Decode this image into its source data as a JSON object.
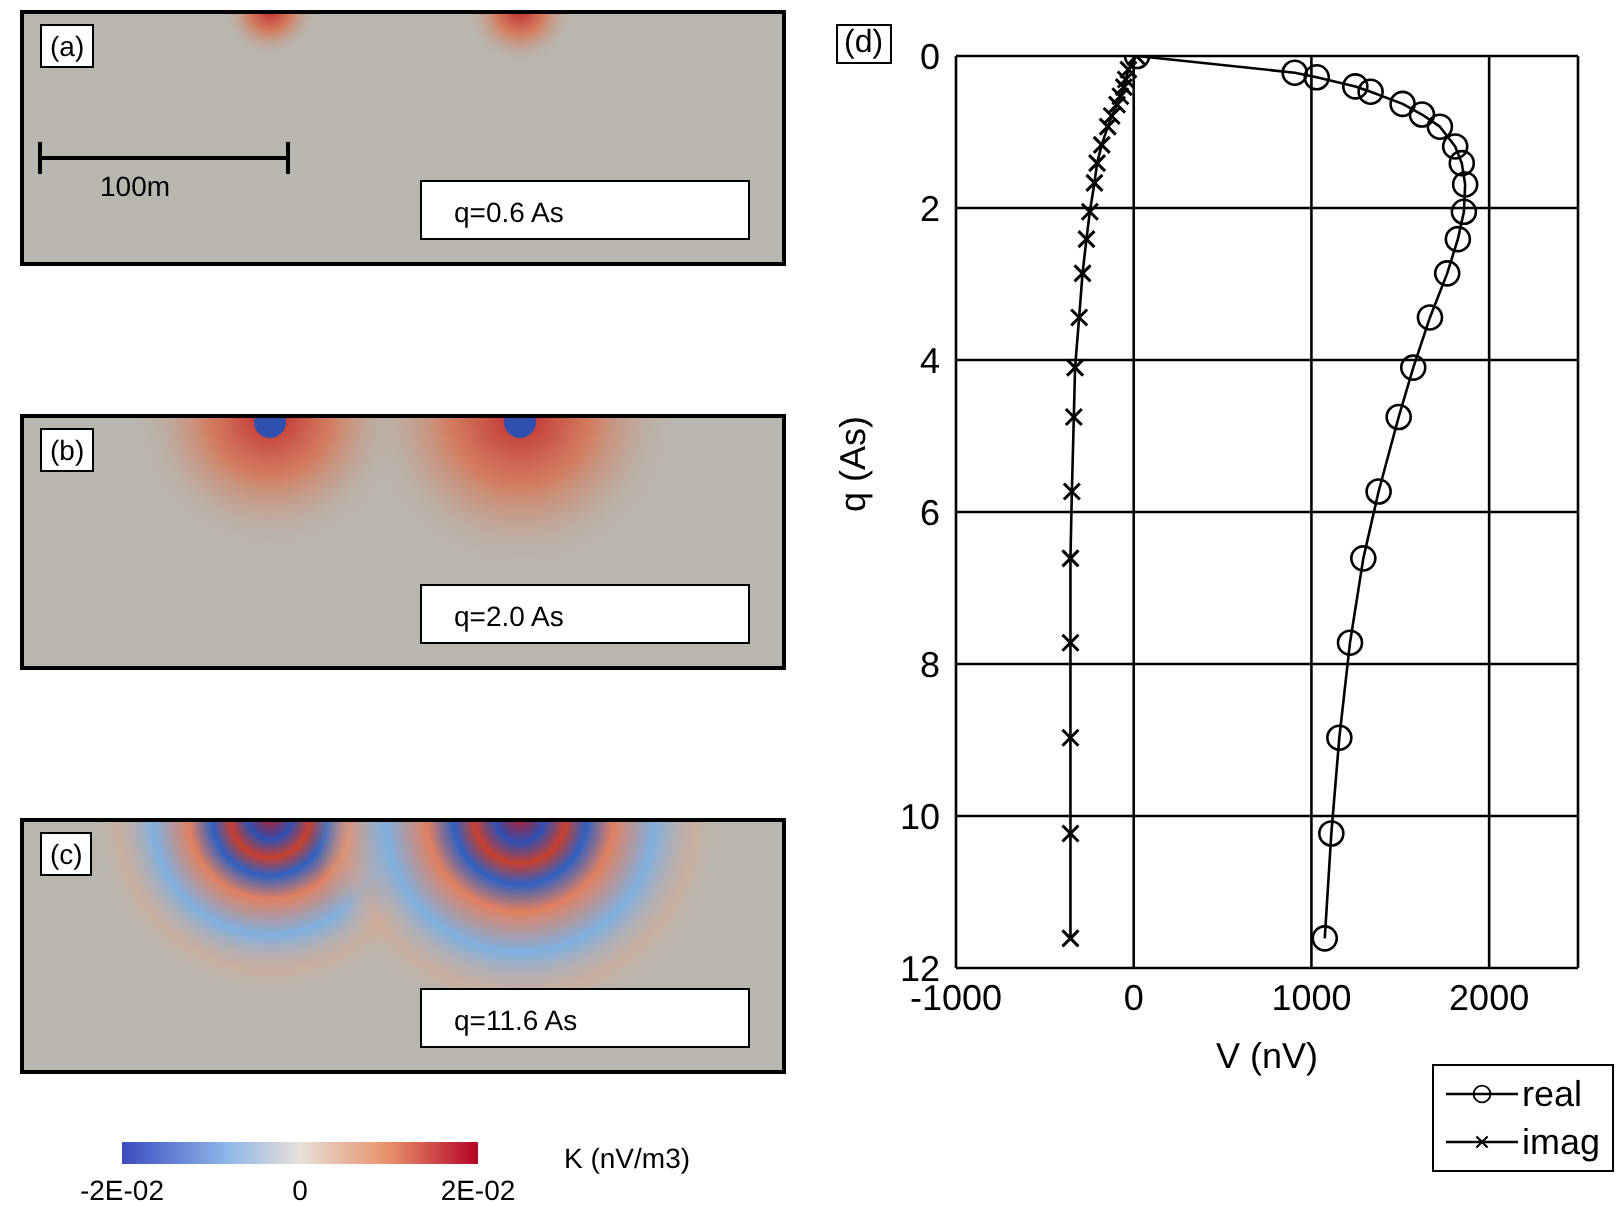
{
  "chart_data": [
    {
      "type": "other",
      "annotations": [
        "(a)",
        "q=0.6 As",
        "100m"
      ]
    },
    {
      "type": "other",
      "annotations": [
        "(b)",
        "q=2.0 As"
      ]
    },
    {
      "type": "other",
      "annotations": [
        "(c)",
        "q=11.6 As",
        "-2E-02",
        "0",
        "2E-02"
      ],
      "clabel": "K (nV/m3)"
    },
    {
      "type": "line",
      "xlabel": "V (nV)",
      "ylabel": "q (As)",
      "annotations": [
        "(d)"
      ],
      "xlim": [
        -1000,
        2500
      ],
      "xticks": [
        -1000,
        0,
        1000,
        2000
      ],
      "ylim": [
        12,
        0
      ],
      "yticks": [
        0,
        2,
        4,
        6,
        8,
        10,
        12
      ],
      "grid": true,
      "legend": "bottom right",
      "series": [
        {
          "name": "real",
          "color": "#000000",
          "marker": "circle",
          "x": [
            19,
            906,
            1030,
            1247,
            1333,
            1513,
            1622,
            1723,
            1809,
            1846,
            1865,
            1858,
            1824,
            1764,
            1667,
            1573,
            1491,
            1378,
            1292,
            1217,
            1157,
            1112,
            1075
          ],
          "values": [
            0,
            0.22,
            0.28,
            0.4,
            0.47,
            0.63,
            0.77,
            0.93,
            1.19,
            1.41,
            1.69,
            2.05,
            2.41,
            2.86,
            3.44,
            4.1,
            4.75,
            5.73,
            6.61,
            7.72,
            8.97,
            10.23,
            11.61
          ]
        },
        {
          "name": "imag",
          "color": "#000000",
          "marker": "cross",
          "x": [
            15,
            -30,
            -45,
            -56,
            -75,
            -94,
            -124,
            -146,
            -180,
            -206,
            -221,
            -247,
            -266,
            -288,
            -307,
            -330,
            -337,
            -348,
            -356,
            -356,
            -356,
            -356,
            -356
          ],
          "values": [
            0,
            0.18,
            0.31,
            0.41,
            0.53,
            0.64,
            0.79,
            0.93,
            1.17,
            1.41,
            1.67,
            2.05,
            2.41,
            2.86,
            3.44,
            4.1,
            4.75,
            5.73,
            6.61,
            7.72,
            8.97,
            10.23,
            11.61
          ]
        }
      ]
    }
  ]
}
